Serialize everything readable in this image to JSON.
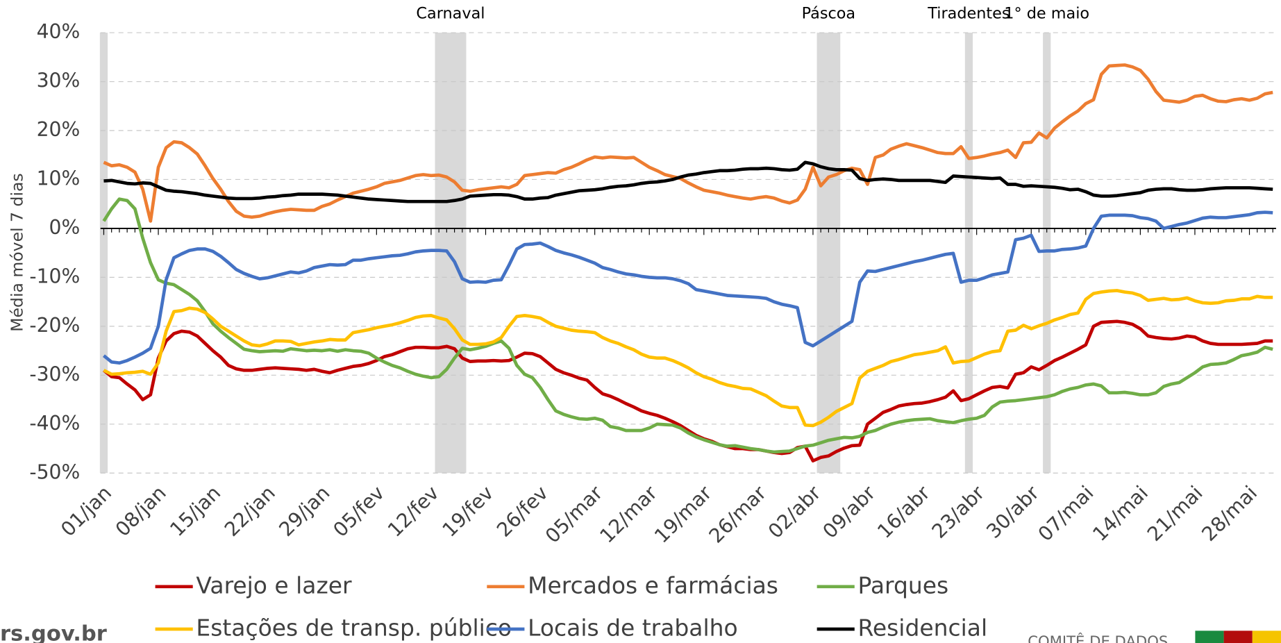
{
  "chart_data": {
    "type": "line",
    "ylabel": "Média móvel 7 dias",
    "categories": [
      "01/jan",
      null,
      null,
      null,
      null,
      null,
      null,
      "08/jan",
      null,
      null,
      null,
      null,
      null,
      null,
      "15/jan",
      null,
      null,
      null,
      null,
      null,
      null,
      "22/jan",
      null,
      null,
      null,
      null,
      null,
      null,
      "29/jan",
      null,
      null,
      null,
      null,
      null,
      null,
      "05/fev",
      null,
      null,
      null,
      null,
      null,
      null,
      "12/fev",
      null,
      null,
      null,
      null,
      null,
      null,
      "19/fev",
      null,
      null,
      null,
      null,
      null,
      null,
      "26/fev",
      null,
      null,
      null,
      null,
      null,
      null,
      "05/mar",
      null,
      null,
      null,
      null,
      null,
      null,
      "12/mar",
      null,
      null,
      null,
      null,
      null,
      null,
      "19/mar",
      null,
      null,
      null,
      null,
      null,
      null,
      "26/mar",
      null,
      null,
      null,
      null,
      null,
      null,
      "02/abr",
      null,
      null,
      null,
      null,
      null,
      null,
      "09/abr",
      null,
      null,
      null,
      null,
      null,
      null,
      "16/abr",
      null,
      null,
      null,
      null,
      null,
      null,
      "23/abr",
      null,
      null,
      null,
      null,
      null,
      null,
      "30/abr",
      null,
      null,
      null,
      null,
      null,
      null,
      "07/mai",
      null,
      null,
      null,
      null,
      null,
      null,
      "14/mai",
      null,
      null,
      null,
      null,
      null,
      null,
      "21/mai",
      null,
      null,
      null,
      null,
      null,
      null,
      "28/mai",
      null,
      null,
      null
    ],
    "ylim": [
      -50,
      40
    ],
    "yticks": [
      {
        "value": -50,
        "label": "-50%"
      },
      {
        "value": -40,
        "label": "-40%"
      },
      {
        "value": -30,
        "label": "-30%"
      },
      {
        "value": -20,
        "label": "-20%"
      },
      {
        "value": -10,
        "label": "-10%"
      },
      {
        "value": 0,
        "label": "0%"
      },
      {
        "value": 10,
        "label": "10%"
      },
      {
        "value": 20,
        "label": "20%"
      },
      {
        "value": 30,
        "label": "30%"
      },
      {
        "value": 40,
        "label": "40%"
      }
    ],
    "grid": true,
    "bands": [
      {
        "start": 0,
        "end": 0
      },
      {
        "label": "Carnaval",
        "start": 43,
        "end": 46
      },
      {
        "label": "Páscoa",
        "start": 92,
        "end": 94
      },
      {
        "label": "Tiradentes",
        "start": 111,
        "end": 111
      },
      {
        "label": "1° de maio",
        "start": 121,
        "end": 121
      }
    ],
    "series": [
      {
        "name": "Varejo e lazer",
        "color": "#c00000",
        "values": [
          -29,
          -30.3,
          -30.5,
          -31.8,
          -33,
          -35,
          -34,
          -26.5,
          -23,
          -21.5,
          -21,
          -21.2,
          -22,
          -23.5,
          -25,
          -26.3,
          -28,
          -28.7,
          -29,
          -29,
          -28.8,
          -28.6,
          -28.5,
          -28.6,
          -28.7,
          -28.8,
          -29,
          -28.8,
          -29.2,
          -29.5,
          -29,
          -28.6,
          -28.2,
          -28,
          -27.6,
          -27,
          -26.2,
          -25.8,
          -25.2,
          -24.6,
          -24.3,
          -24.3,
          -24.4,
          -24.4,
          -24.1,
          -24.6,
          -26.5,
          -27.2,
          -27.1,
          -27.1,
          -27,
          -27.1,
          -27,
          -26.3,
          -25.5,
          -25.6,
          -26.2,
          -27.5,
          -28.8,
          -29.5,
          -30,
          -30.6,
          -31,
          -32.5,
          -33.8,
          -34.3,
          -35,
          -35.8,
          -36.5,
          -37.3,
          -37.8,
          -38.2,
          -38.8,
          -39.5,
          -40.3,
          -41.3,
          -42.3,
          -43,
          -43.5,
          -44.2,
          -44.6,
          -45,
          -45,
          -45.2,
          -45.2,
          -45.5,
          -45.8,
          -46,
          -45.8,
          -44.8,
          -44.5,
          -47.5,
          -46.8,
          -46.5,
          -45.6,
          -44.9,
          -44.4,
          -44.3,
          -40,
          -38.8,
          -37.6,
          -37,
          -36.3,
          -36,
          -35.8,
          -35.7,
          -35.4,
          -35,
          -34.5,
          -33.2,
          -35.2,
          -34.8,
          -34,
          -33.2,
          -32.5,
          -32.3,
          -32.6,
          -29.8,
          -29.5,
          -28.3,
          -28.9,
          -28,
          -27,
          -26.3,
          -25.5,
          -24.7,
          -23.8,
          -20,
          -19.2,
          -19.1,
          -19,
          -19.2,
          -19.6,
          -20.5,
          -22,
          -22.3,
          -22.5,
          -22.6,
          -22.4,
          -22,
          -22.2,
          -23,
          -23.5,
          -23.7,
          -23.7,
          -23.7,
          -23.7,
          -23.6,
          -23.5,
          -23,
          -23
        ]
      },
      {
        "name": "Mercados e farmácias",
        "color": "#ed7d31",
        "values": [
          13.5,
          12.8,
          13,
          12.5,
          11.5,
          8,
          1.5,
          12.5,
          16.5,
          17.7,
          17.5,
          16.5,
          15.2,
          12.8,
          10.2,
          8,
          5.5,
          3.5,
          2.5,
          2.3,
          2.5,
          3,
          3.4,
          3.7,
          3.9,
          3.8,
          3.7,
          3.7,
          4.5,
          5,
          5.8,
          6.5,
          7.2,
          7.6,
          8,
          8.5,
          9.2,
          9.5,
          9.8,
          10.3,
          10.8,
          11,
          10.8,
          10.9,
          10.5,
          9.5,
          7.8,
          7.6,
          7.9,
          8.1,
          8.3,
          8.5,
          8.3,
          9,
          10.8,
          11,
          11.2,
          11.4,
          11.3,
          12,
          12.5,
          13.2,
          14,
          14.6,
          14.4,
          14.6,
          14.5,
          14.4,
          14.5,
          13.5,
          12.5,
          11.8,
          11,
          10.6,
          10.2,
          9.3,
          8.5,
          7.8,
          7.5,
          7.2,
          6.8,
          6.5,
          6.2,
          6,
          6.3,
          6.5,
          6.2,
          5.6,
          5.2,
          5.8,
          8,
          12.5,
          8.7,
          10.5,
          11,
          11.8,
          12.3,
          12,
          9,
          14.5,
          15,
          16.2,
          16.8,
          17.3,
          16.9,
          16.5,
          16,
          15.5,
          15.3,
          15.3,
          16.7,
          14.3,
          14.5,
          14.8,
          15.2,
          15.5,
          16,
          14.5,
          17.5,
          17.6,
          19.5,
          18.5,
          20.5,
          21.8,
          23,
          24,
          25.5,
          26.3,
          31.5,
          33.2,
          33.3,
          33.4,
          33,
          32.3,
          30.5,
          28,
          26.2,
          26,
          25.8,
          26.2,
          27,
          27.2,
          26.5,
          26,
          25.9,
          26.3,
          26.5,
          26.2,
          26.6,
          27.5,
          27.8
        ]
      },
      {
        "name": "Parques",
        "color": "#70ad47",
        "values": [
          1.5,
          4,
          6,
          5.7,
          4,
          -2,
          -7,
          -10.5,
          -11.2,
          -11.5,
          -12.5,
          -13.5,
          -14.8,
          -17,
          -19.5,
          -21,
          -22.3,
          -23.5,
          -24.7,
          -25,
          -25.2,
          -25.1,
          -25,
          -25.1,
          -24.6,
          -24.8,
          -25,
          -24.9,
          -25,
          -24.8,
          -25.1,
          -24.8,
          -25,
          -25.1,
          -25.5,
          -26.5,
          -27.3,
          -28,
          -28.5,
          -29.2,
          -29.8,
          -30.2,
          -30.5,
          -30.3,
          -28.8,
          -26.5,
          -24.5,
          -24.8,
          -24.5,
          -24.1,
          -23.5,
          -23,
          -24.5,
          -28,
          -29.8,
          -30.5,
          -32.5,
          -35,
          -37.3,
          -38,
          -38.5,
          -38.9,
          -39,
          -38.8,
          -39.2,
          -40.5,
          -40.8,
          -41.3,
          -41.3,
          -41.3,
          -40.8,
          -40,
          -40.1,
          -40.2,
          -40.8,
          -41.8,
          -42.6,
          -43.2,
          -43.7,
          -44.2,
          -44.5,
          -44.4,
          -44.7,
          -45,
          -45.2,
          -45.5,
          -45.7,
          -45.6,
          -45.5,
          -45,
          -44.5,
          -44.3,
          -43.8,
          -43.3,
          -43,
          -42.7,
          -42.8,
          -42.5,
          -41.7,
          -41.3,
          -40.6,
          -40,
          -39.6,
          -39.3,
          -39.1,
          -39,
          -38.9,
          -39.3,
          -39.5,
          -39.7,
          -39.3,
          -39,
          -38.8,
          -38.2,
          -36.5,
          -35.5,
          -35.3,
          -35.2,
          -35,
          -34.8,
          -34.6,
          -34.4,
          -34,
          -33.3,
          -32.8,
          -32.5,
          -32,
          -31.8,
          -32.2,
          -33.6,
          -33.6,
          -33.5,
          -33.7,
          -34,
          -34,
          -33.6,
          -32.3,
          -31.8,
          -31.5,
          -30.5,
          -29.5,
          -28.3,
          -27.8,
          -27.7,
          -27.5,
          -26.8,
          -26,
          -25.7,
          -25.3,
          -24.3,
          -24.7
        ]
      },
      {
        "name": "Estações de transp. público",
        "color": "#ffc000",
        "values": [
          -29,
          -29.8,
          -29.7,
          -29.5,
          -29.4,
          -29.2,
          -29.8,
          -27.5,
          -21,
          -17,
          -16.8,
          -16.3,
          -16.5,
          -17.2,
          -18.5,
          -20,
          -21,
          -22,
          -23,
          -23.8,
          -24,
          -23.6,
          -23,
          -23,
          -23.1,
          -23.8,
          -23.5,
          -23.2,
          -23,
          -22.7,
          -22.8,
          -22.8,
          -21.3,
          -21,
          -20.7,
          -20.3,
          -20,
          -19.7,
          -19.3,
          -18.8,
          -18.2,
          -17.9,
          -17.8,
          -18.3,
          -18.7,
          -20.5,
          -22.8,
          -23.7,
          -23.7,
          -23.6,
          -23.2,
          -22.3,
          -20,
          -18,
          -17.8,
          -18,
          -18.3,
          -19.2,
          -20,
          -20.4,
          -20.8,
          -21,
          -21.1,
          -21.3,
          -22.3,
          -23,
          -23.5,
          -24.2,
          -24.8,
          -25.7,
          -26.3,
          -26.5,
          -26.5,
          -27,
          -27.7,
          -28.5,
          -29.5,
          -30.3,
          -30.8,
          -31.5,
          -32,
          -32.3,
          -32.7,
          -32.8,
          -33.5,
          -34.2,
          -35.3,
          -36.3,
          -36.6,
          -36.6,
          -40.2,
          -40.3,
          -39.6,
          -38.6,
          -37.4,
          -36.6,
          -35.8,
          -30.6,
          -29.2,
          -28.6,
          -28,
          -27.2,
          -26.8,
          -26.3,
          -25.8,
          -25.6,
          -25.3,
          -25,
          -24.2,
          -27.5,
          -27.2,
          -27.1,
          -26.4,
          -25.7,
          -25.2,
          -25,
          -21,
          -20.8,
          -19.8,
          -20.5,
          -19.9,
          -19.4,
          -18.7,
          -18.2,
          -17.6,
          -17.3,
          -14.5,
          -13.3,
          -13,
          -12.8,
          -12.7,
          -13,
          -13.2,
          -13.7,
          -14.7,
          -14.5,
          -14.3,
          -14.6,
          -14.5,
          -14.2,
          -14.8,
          -15.2,
          -15.3,
          -15.2,
          -14.8,
          -14.7,
          -14.4,
          -14.4,
          -13.9,
          -14.1,
          -14.1
        ]
      },
      {
        "name": "Locais de trabalho",
        "color": "#4472c4",
        "values": [
          -26,
          -27.3,
          -27.5,
          -27,
          -26.3,
          -25.5,
          -24.5,
          -20,
          -10.5,
          -6,
          -5.2,
          -4.5,
          -4.2,
          -4.2,
          -4.7,
          -5.7,
          -7,
          -8.4,
          -9.2,
          -9.8,
          -10.3,
          -10.1,
          -9.7,
          -9.3,
          -8.9,
          -9.1,
          -8.7,
          -8,
          -7.7,
          -7.4,
          -7.5,
          -7.4,
          -6.5,
          -6.5,
          -6.2,
          -6,
          -5.8,
          -5.6,
          -5.5,
          -5.2,
          -4.8,
          -4.6,
          -4.5,
          -4.5,
          -4.6,
          -6.8,
          -10.3,
          -11,
          -10.9,
          -11,
          -10.6,
          -10.5,
          -7.5,
          -4.2,
          -3.3,
          -3.2,
          -3,
          -3.7,
          -4.5,
          -5,
          -5.4,
          -5.9,
          -6.5,
          -7.1,
          -8,
          -8.4,
          -8.9,
          -9.3,
          -9.5,
          -9.8,
          -10,
          -10.1,
          -10.1,
          -10.3,
          -10.7,
          -11.3,
          -12.5,
          -12.8,
          -13.1,
          -13.4,
          -13.7,
          -13.8,
          -13.9,
          -14,
          -14.1,
          -14.3,
          -15,
          -15.5,
          -15.8,
          -16.2,
          -23.3,
          -24,
          -23,
          -22,
          -21,
          -20,
          -19,
          -11,
          -8.7,
          -8.8,
          -8.4,
          -8,
          -7.6,
          -7.2,
          -6.8,
          -6.5,
          -6.1,
          -5.7,
          -5.3,
          -5.1,
          -11,
          -10.6,
          -10.6,
          -10.1,
          -9.5,
          -9.2,
          -8.9,
          -2.3,
          -2,
          -1.4,
          -4.7,
          -4.6,
          -4.6,
          -4.3,
          -4.2,
          -4,
          -3.6,
          0,
          2.5,
          2.7,
          2.7,
          2.7,
          2.6,
          2.2,
          2,
          1.5,
          0,
          0.4,
          0.8,
          1.1,
          1.6,
          2.1,
          2.3,
          2.2,
          2.2,
          2.4,
          2.6,
          2.8,
          3.2,
          3.3,
          3.2
        ]
      },
      {
        "name": "Residencial",
        "color": "#000000",
        "values": [
          9.7,
          9.8,
          9.5,
          9.2,
          9.1,
          9.3,
          9.2,
          8.5,
          7.8,
          7.6,
          7.5,
          7.3,
          7.1,
          6.8,
          6.6,
          6.4,
          6.2,
          6.1,
          6.1,
          6.1,
          6.2,
          6.4,
          6.5,
          6.7,
          6.8,
          7,
          7,
          7,
          7,
          6.9,
          6.8,
          6.6,
          6.4,
          6.2,
          6,
          5.9,
          5.8,
          5.7,
          5.6,
          5.5,
          5.5,
          5.5,
          5.5,
          5.5,
          5.5,
          5.7,
          6,
          6.6,
          6.7,
          6.8,
          6.9,
          6.9,
          6.8,
          6.5,
          6,
          6,
          6.2,
          6.3,
          6.8,
          7.1,
          7.4,
          7.7,
          7.8,
          7.9,
          8.1,
          8.4,
          8.6,
          8.7,
          8.9,
          9.2,
          9.4,
          9.5,
          9.7,
          10,
          10.5,
          10.9,
          11.1,
          11.4,
          11.6,
          11.8,
          11.8,
          11.9,
          12.1,
          12.2,
          12.2,
          12.3,
          12.2,
          12,
          11.9,
          12.1,
          13.5,
          13.2,
          12.6,
          12.2,
          12,
          12,
          11.9,
          10.2,
          9.8,
          10,
          10.1,
          10,
          9.8,
          9.8,
          9.8,
          9.8,
          9.8,
          9.6,
          9.4,
          10.7,
          10.6,
          10.5,
          10.4,
          10.3,
          10.2,
          10.3,
          9,
          9,
          8.6,
          8.7,
          8.6,
          8.5,
          8.4,
          8.2,
          7.9,
          8,
          7.5,
          6.8,
          6.6,
          6.6,
          6.7,
          6.9,
          7.1,
          7.3,
          7.8,
          8,
          8.1,
          8.1,
          7.9,
          7.8,
          7.8,
          7.9,
          8.1,
          8.2,
          8.3,
          8.3,
          8.3,
          8.3,
          8.2,
          8.1,
          8
        ]
      }
    ]
  },
  "footer": {
    "site": "rs.gov.br",
    "org": "COMITÊ DE DADOS"
  }
}
